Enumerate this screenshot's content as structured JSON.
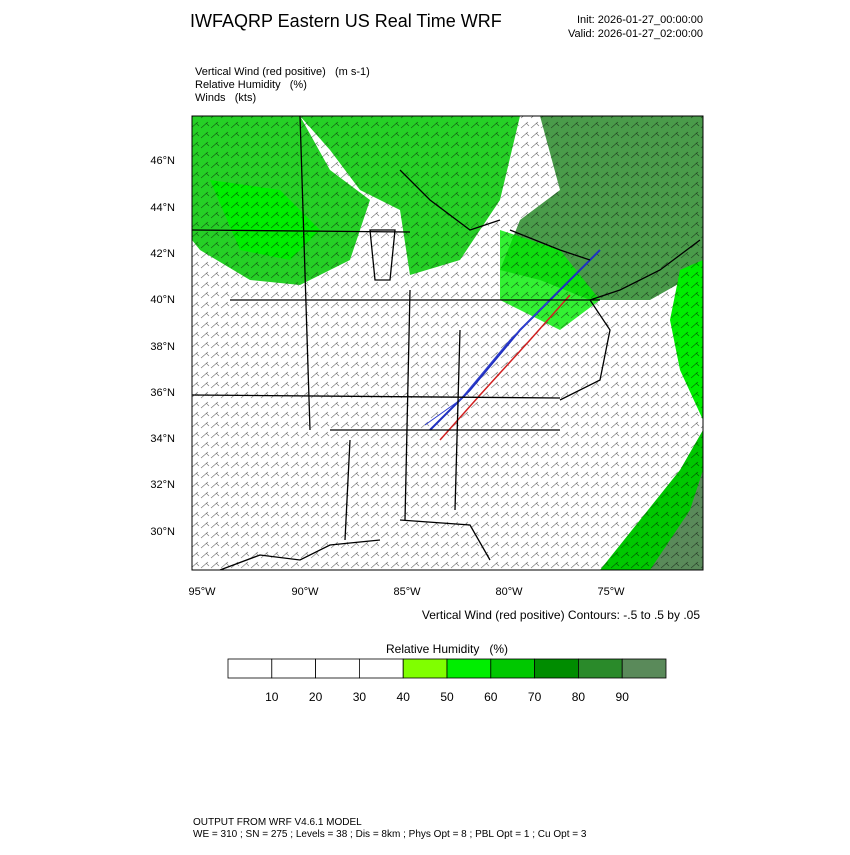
{
  "header": {
    "title": "IWFAQRP Eastern US Real Time WRF",
    "init": "Init: 2026-01-27_00:00:00",
    "valid": "Valid: 2026-01-27_02:00:00"
  },
  "fields": [
    "Vertical Wind (red positive)   (m s-1)",
    "Relative Humidity   (%)",
    "Winds   (kts)"
  ],
  "map": {
    "lat_labels": [
      "46°N",
      "44°N",
      "42°N",
      "40°N",
      "38°N",
      "36°N",
      "34°N",
      "32°N",
      "30°N"
    ],
    "lon_labels": [
      "95°W",
      "90°W",
      "85°W",
      "80°W",
      "75°W"
    ],
    "contour_note": "Vertical Wind (red positive) Contours: -.5 to .5 by .05"
  },
  "colorbar": {
    "title": "Relative Humidity   (%)",
    "labels": [
      "10",
      "20",
      "30",
      "40",
      "50",
      "60",
      "70",
      "80",
      "90"
    ],
    "colors": [
      "#ffffff",
      "#ffffff",
      "#ffffff",
      "#ffffff",
      "#80ff00",
      "#00ee00",
      "#00c800",
      "#008c00",
      "#2a8a2a",
      "#5a8a5a"
    ]
  },
  "footer": [
    "OUTPUT FROM WRF V4.6.1 MODEL",
    "WE = 310 ; SN = 275 ; Levels = 38 ; Dis = 8km ; Phys Opt = 8 ; PBL Opt = 1 ; Cu Opt = 3"
  ]
}
